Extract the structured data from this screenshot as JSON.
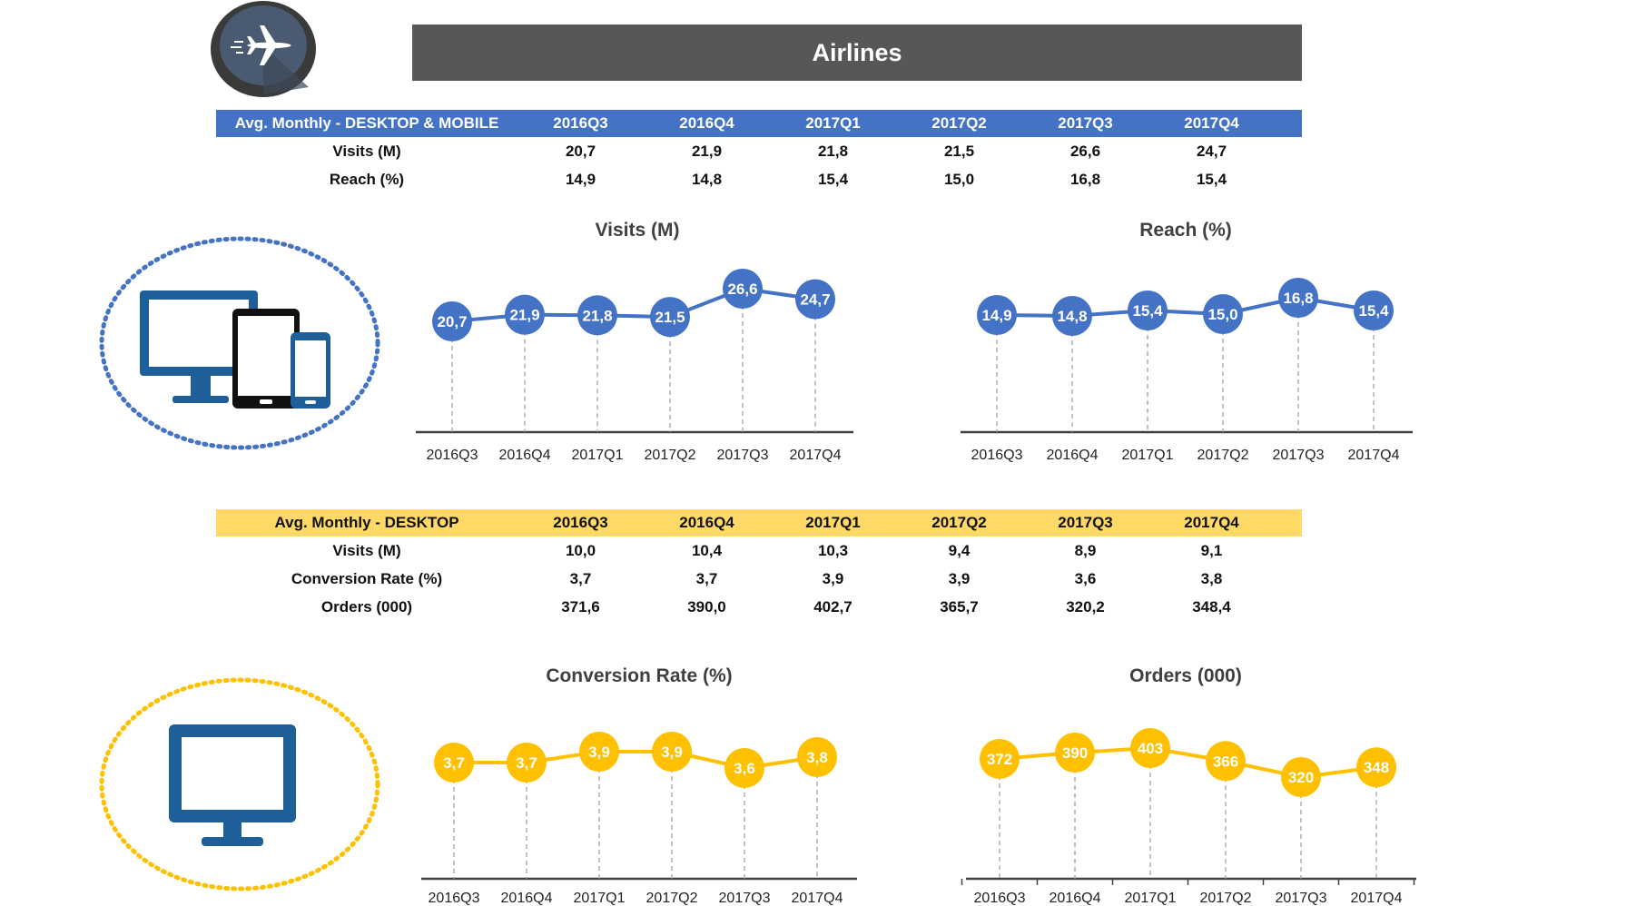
{
  "title": "Airlines",
  "icons": {
    "header_icon": "airplane-icon",
    "devices_icon": "desktop-tablet-phone-icon",
    "desktop_icon": "desktop-monitor-icon"
  },
  "colors": {
    "blue": "#4472C4",
    "gold": "#FFC000",
    "gold_header": "#FFD966",
    "title_bar": "#575757"
  },
  "table_all": {
    "header": "Avg. Monthly - DESKTOP & MOBILE",
    "quarters": [
      "2016Q3",
      "2016Q4",
      "2017Q1",
      "2017Q2",
      "2017Q3",
      "2017Q4"
    ],
    "rows": [
      {
        "label": "Visits (M)",
        "values": [
          "20,7",
          "21,9",
          "21,8",
          "21,5",
          "26,6",
          "24,7"
        ]
      },
      {
        "label": "Reach (%)",
        "values": [
          "14,9",
          "14,8",
          "15,4",
          "15,0",
          "16,8",
          "15,4"
        ]
      }
    ]
  },
  "table_desktop": {
    "header": "Avg. Monthly - DESKTOP",
    "quarters": [
      "2016Q3",
      "2016Q4",
      "2017Q1",
      "2017Q2",
      "2017Q3",
      "2017Q4"
    ],
    "rows": [
      {
        "label": "Visits (M)",
        "values": [
          "10,0",
          "10,4",
          "10,3",
          "9,4",
          "8,9",
          "9,1"
        ]
      },
      {
        "label": "Conversion Rate (%)",
        "values": [
          "3,7",
          "3,7",
          "3,9",
          "3,9",
          "3,6",
          "3,8"
        ]
      },
      {
        "label": "Orders (000)",
        "values": [
          "371,6",
          "390,0",
          "402,7",
          "365,7",
          "320,2",
          "348,4"
        ]
      }
    ]
  },
  "chart_data": [
    {
      "type": "line",
      "title": "Visits (M)",
      "categories": [
        "2016Q3",
        "2016Q4",
        "2017Q1",
        "2017Q2",
        "2017Q3",
        "2017Q4"
      ],
      "values": [
        20.7,
        21.9,
        21.8,
        21.5,
        26.6,
        24.7
      ],
      "labels": [
        "20,7",
        "21,9",
        "21,8",
        "21,5",
        "26,6",
        "24,7"
      ],
      "color": "#4472C4",
      "grid": false,
      "legend": "none"
    },
    {
      "type": "line",
      "title": "Reach (%)",
      "categories": [
        "2016Q3",
        "2016Q4",
        "2017Q1",
        "2017Q2",
        "2017Q3",
        "2017Q4"
      ],
      "values": [
        14.9,
        14.8,
        15.4,
        15.0,
        16.8,
        15.4
      ],
      "labels": [
        "14,9",
        "14,8",
        "15,4",
        "15,0",
        "16,8",
        "15,4"
      ],
      "color": "#4472C4",
      "grid": false,
      "legend": "none"
    },
    {
      "type": "line",
      "title": "Conversion Rate (%)",
      "categories": [
        "2016Q3",
        "2016Q4",
        "2017Q1",
        "2017Q2",
        "2017Q3",
        "2017Q4"
      ],
      "values": [
        3.7,
        3.7,
        3.9,
        3.9,
        3.6,
        3.8
      ],
      "labels": [
        "3,7",
        "3,7",
        "3,9",
        "3,9",
        "3,6",
        "3,8"
      ],
      "color": "#FFC000",
      "grid": false,
      "legend": "none"
    },
    {
      "type": "line",
      "title": "Orders (000)",
      "categories": [
        "2016Q3",
        "2016Q4",
        "2017Q1",
        "2017Q2",
        "2017Q3",
        "2017Q4"
      ],
      "values": [
        372,
        390,
        403,
        366,
        320,
        348
      ],
      "labels": [
        "372",
        "390",
        "403",
        "366",
        "320",
        "348"
      ],
      "color": "#FFC000",
      "grid": false,
      "legend": "none"
    }
  ]
}
